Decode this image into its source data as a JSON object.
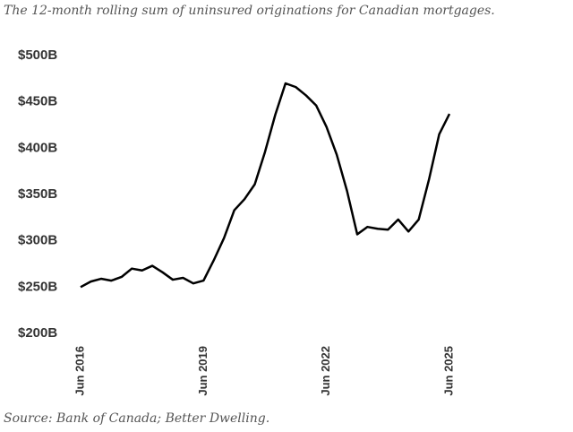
{
  "chart_data": {
    "type": "line",
    "title": "The 12-month rolling sum of uninsured originations for Canadian mortgages.",
    "source": "Source: Bank of Canada; Better Dwelling.",
    "x": [
      "2016-06",
      "2016-09",
      "2016-12",
      "2017-03",
      "2017-06",
      "2017-09",
      "2017-12",
      "2018-03",
      "2018-06",
      "2018-09",
      "2018-12",
      "2019-03",
      "2019-06",
      "2019-09",
      "2019-12",
      "2020-03",
      "2020-06",
      "2020-09",
      "2020-12",
      "2021-03",
      "2021-06",
      "2021-09",
      "2021-12",
      "2022-03",
      "2022-06",
      "2022-09",
      "2022-12",
      "2023-03",
      "2023-06",
      "2023-09",
      "2023-12",
      "2024-03",
      "2024-06",
      "2024-09",
      "2024-12",
      "2025-03",
      "2025-06"
    ],
    "series": [
      {
        "color": "#000000",
        "values": [
          250,
          256,
          259,
          257,
          261,
          270,
          268,
          273,
          266,
          258,
          260,
          254,
          257,
          279,
          303,
          333,
          345,
          361,
          396,
          436,
          470,
          466,
          457,
          446,
          423,
          393,
          354,
          307,
          315,
          313,
          312,
          323,
          310,
          323,
          366,
          415,
          437
        ]
      }
    ],
    "xlim": [
      "2016-06",
      "2025-06"
    ],
    "xticks": [
      {
        "value": "2016-06",
        "label": "Jun 2016"
      },
      {
        "value": "2019-06",
        "label": "Jun 2019"
      },
      {
        "value": "2022-06",
        "label": "Jun 2022"
      },
      {
        "value": "2025-06",
        "label": "Jun 2025"
      }
    ],
    "ylim": [
      200,
      500
    ],
    "yticks": [
      {
        "value": 200,
        "label": "$200B"
      },
      {
        "value": 250,
        "label": "$250B"
      },
      {
        "value": 300,
        "label": "$300B"
      },
      {
        "value": 350,
        "label": "$350B"
      },
      {
        "value": 400,
        "label": "$400B"
      },
      {
        "value": 450,
        "label": "$450B"
      },
      {
        "value": 500,
        "label": "$500B"
      }
    ],
    "grid": false
  }
}
